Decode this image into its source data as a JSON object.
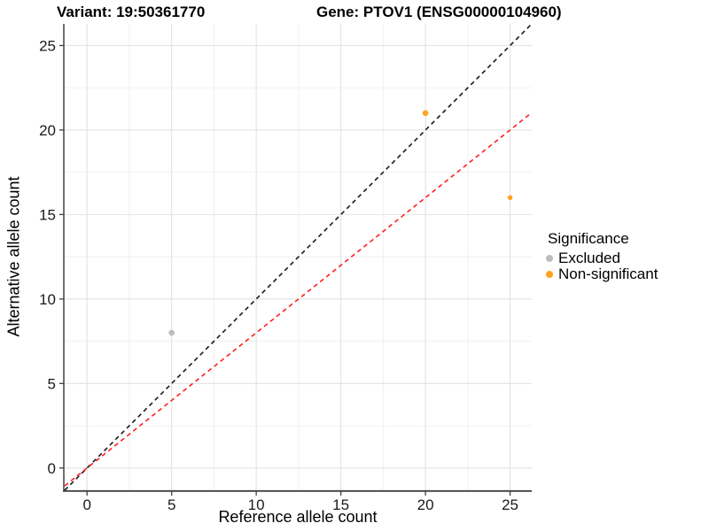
{
  "header": {
    "variant_title": "Variant: 19:50361770",
    "gene_title": "Gene: PTOV1 (ENSG00000104960)"
  },
  "axes": {
    "x_label": "Reference allele count",
    "y_label": "Alternative allele count"
  },
  "legend": {
    "title": "Significance",
    "items": [
      {
        "label": "Excluded",
        "color": "#BDBDBD"
      },
      {
        "label": "Non-significant",
        "color": "#FFA320"
      }
    ]
  },
  "chart_data": {
    "type": "scatter",
    "title": "Variant: 19:50361770 — Gene: PTOV1 (ENSG00000104960)",
    "xlabel": "Reference allele count",
    "ylabel": "Alternative allele count",
    "xlim": [
      -1.32,
      26.28
    ],
    "ylim": [
      -1.32,
      26.28
    ],
    "ticks": [
      0,
      5,
      10,
      15,
      20,
      25
    ],
    "grid": true,
    "legend_position": "right",
    "points": [
      {
        "x": 5,
        "y": 8,
        "group": "Excluded",
        "color": "#BDBDBD",
        "r": 3.3
      },
      {
        "x": 20,
        "y": 21,
        "group": "Non-significant",
        "color": "#FFA320",
        "r": 3.3
      },
      {
        "x": 25,
        "y": 16,
        "group": "Non-significant",
        "color": "#FFA320",
        "r": 2.8
      }
    ],
    "lines": [
      {
        "name": "identity-line",
        "slope": 1.0,
        "intercept": 0,
        "color": "#1A1A1A",
        "dash": "5,4",
        "width": 1.6
      },
      {
        "name": "ratio-line",
        "slope": 0.8,
        "intercept": 0,
        "color": "#FF1F1F",
        "dash": "5,4",
        "width": 1.6
      }
    ],
    "colors": {
      "grid_major": "#E3E3E3",
      "grid_minor": "#EFEFEF",
      "axis_line": "#404040",
      "tick_text": "#1A1A1A"
    }
  }
}
